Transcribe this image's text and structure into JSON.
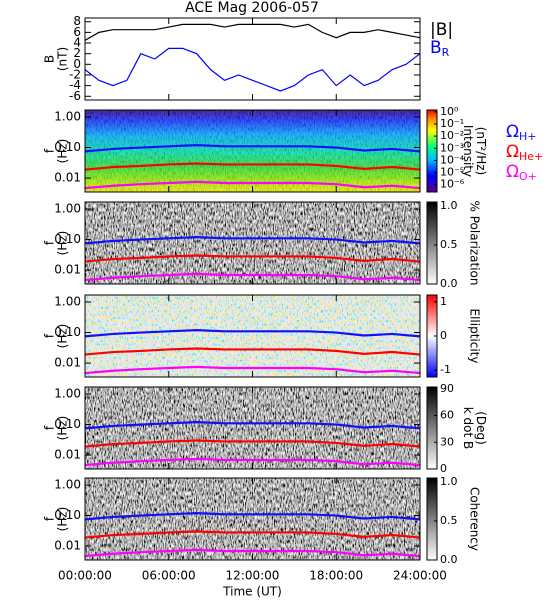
{
  "chart_data": [
    {
      "type": "line",
      "title": "ACE Mag 2006-057",
      "ylabel": [
        "B",
        "(nT)"
      ],
      "x": [
        0,
        1,
        2,
        3,
        4,
        5,
        6,
        7,
        8,
        9,
        10,
        11,
        12,
        13,
        14,
        15,
        16,
        17,
        18,
        19,
        20,
        21,
        22,
        23,
        24
      ],
      "xlim": [
        0,
        24
      ],
      "ylim": [
        -6.7,
        8.7
      ],
      "yticks": [
        -6,
        -4,
        -2,
        0,
        2,
        4,
        6,
        8
      ],
      "series": [
        {
          "name": "|B|",
          "color": "#000000",
          "values": [
            4.5,
            6,
            6.5,
            6.5,
            6.5,
            6.5,
            7,
            7.5,
            7.5,
            7.5,
            7,
            7.5,
            7.5,
            7.5,
            7.5,
            7,
            7.5,
            6,
            5,
            6,
            6,
            6.5,
            6,
            5.5,
            5
          ]
        },
        {
          "name": "B",
          "subscript": "R",
          "color": "#0000ff",
          "values": [
            -1,
            -3,
            -4,
            -3,
            2,
            1,
            3,
            3,
            2,
            -1,
            -3,
            -2,
            -3,
            -4,
            -5,
            -4,
            -2,
            -1,
            -4,
            -2,
            -4,
            -3,
            -1,
            0,
            2
          ]
        }
      ]
    },
    {
      "type": "spectrogram",
      "ylabel": [
        "f",
        "(Hz)"
      ],
      "x": [
        0,
        2,
        4,
        6,
        8,
        10,
        12,
        14,
        16,
        18,
        20,
        22,
        24
      ],
      "xlim": [
        0,
        24
      ],
      "ylog": true,
      "ylim": [
        0.0035,
        1.7
      ],
      "yticks": [
        {
          "value": 1,
          "label": "1.00"
        },
        {
          "value": 0.1,
          "label": "0.10"
        },
        {
          "value": 0.01,
          "label": "0.01"
        }
      ],
      "colormap": "rainbow",
      "colorbar": {
        "label": [
          "Intensity",
          "(nT²/Hz)"
        ],
        "zlim": [
          -6.6,
          0.15
        ],
        "ticks": [
          {
            "value": 0,
            "label": "10⁰"
          },
          {
            "value": -1,
            "label": "10⁻¹"
          },
          {
            "value": -2,
            "label": "10⁻²"
          },
          {
            "value": -3,
            "label": "10⁻³"
          },
          {
            "value": -4,
            "label": "10⁻⁴"
          },
          {
            "value": -5,
            "label": "10⁻⁵"
          },
          {
            "value": -6,
            "label": "10⁻⁶"
          }
        ]
      },
      "series": [
        {
          "name": "Ω",
          "subscript": "H+",
          "color": "#1010ff",
          "values": [
            0.075,
            0.09,
            0.1,
            0.11,
            0.12,
            0.11,
            0.11,
            0.11,
            0.11,
            0.1,
            0.08,
            0.09,
            0.075
          ]
        },
        {
          "name": "Ω",
          "subscript": "He+",
          "color": "#ff0000",
          "values": [
            0.019,
            0.023,
            0.025,
            0.028,
            0.03,
            0.028,
            0.028,
            0.028,
            0.028,
            0.025,
            0.02,
            0.023,
            0.019
          ]
        },
        {
          "name": "Ω",
          "subscript": "O+",
          "color": "#ff00ff",
          "values": [
            0.0047,
            0.0056,
            0.0063,
            0.0069,
            0.0075,
            0.0069,
            0.0069,
            0.0069,
            0.0069,
            0.0063,
            0.005,
            0.0056,
            0.0047
          ]
        }
      ]
    },
    {
      "type": "spectrogram",
      "ylabel": [
        "f",
        "(Hz)"
      ],
      "x": [
        0,
        2,
        4,
        6,
        8,
        10,
        12,
        14,
        16,
        18,
        20,
        22,
        24
      ],
      "xlim": [
        0,
        24
      ],
      "ylog": true,
      "ylim": [
        0.0035,
        1.7
      ],
      "yticks": [
        {
          "value": 1,
          "label": "1.00"
        },
        {
          "value": 0.1,
          "label": "0.10"
        },
        {
          "value": 0.01,
          "label": "0.01"
        }
      ],
      "colormap": "gray",
      "colorbar": {
        "label": [
          "% Polarization"
        ],
        "zlim": [
          0,
          1.05
        ],
        "ticks": [
          {
            "value": 0,
            "label": "0.0"
          },
          {
            "value": 0.5,
            "label": "0.5"
          },
          {
            "value": 1,
            "label": "1.0"
          }
        ]
      },
      "series": [
        {
          "color": "#1010ff",
          "values": [
            0.075,
            0.09,
            0.1,
            0.11,
            0.12,
            0.11,
            0.11,
            0.11,
            0.11,
            0.1,
            0.08,
            0.09,
            0.075
          ]
        },
        {
          "color": "#ff0000",
          "values": [
            0.019,
            0.023,
            0.025,
            0.028,
            0.03,
            0.028,
            0.028,
            0.028,
            0.028,
            0.025,
            0.02,
            0.023,
            0.019
          ]
        },
        {
          "color": "#ff00ff",
          "values": [
            0.0047,
            0.0056,
            0.0063,
            0.0069,
            0.0075,
            0.0069,
            0.0069,
            0.0069,
            0.0069,
            0.0063,
            0.005,
            0.0056,
            0.0047
          ]
        }
      ]
    },
    {
      "type": "spectrogram",
      "ylabel": [
        "f",
        "(Hz)"
      ],
      "x": [
        0,
        2,
        4,
        6,
        8,
        10,
        12,
        14,
        16,
        18,
        20,
        22,
        24
      ],
      "xlim": [
        0,
        24
      ],
      "ylog": true,
      "ylim": [
        0.0035,
        1.7
      ],
      "yticks": [
        {
          "value": 1,
          "label": "1.00"
        },
        {
          "value": 0.1,
          "label": "0.10"
        },
        {
          "value": 0.01,
          "label": "0.01"
        }
      ],
      "colormap": "bwr",
      "colorbar": {
        "label": [
          "Ellipticity"
        ],
        "zlim": [
          -1.2,
          1.2
        ],
        "ticks": [
          -1,
          0,
          1
        ]
      },
      "series": [
        {
          "color": "#1010ff",
          "values": [
            0.075,
            0.09,
            0.1,
            0.11,
            0.12,
            0.11,
            0.11,
            0.11,
            0.11,
            0.1,
            0.08,
            0.09,
            0.075
          ]
        },
        {
          "color": "#ff0000",
          "values": [
            0.019,
            0.023,
            0.025,
            0.028,
            0.03,
            0.028,
            0.028,
            0.028,
            0.028,
            0.025,
            0.02,
            0.023,
            0.019
          ]
        },
        {
          "color": "#ff00ff",
          "values": [
            0.0047,
            0.0056,
            0.0063,
            0.0069,
            0.0075,
            0.0069,
            0.0069,
            0.0069,
            0.0069,
            0.0063,
            0.005,
            0.0056,
            0.0047
          ]
        }
      ]
    },
    {
      "type": "spectrogram",
      "ylabel": [
        "f",
        "(Hz)"
      ],
      "x": [
        0,
        2,
        4,
        6,
        8,
        10,
        12,
        14,
        16,
        18,
        20,
        22,
        24
      ],
      "xlim": [
        0,
        24
      ],
      "ylog": true,
      "ylim": [
        0.0035,
        1.7
      ],
      "yticks": [
        {
          "value": 1,
          "label": "1.00"
        },
        {
          "value": 0.1,
          "label": "0.10"
        },
        {
          "value": 0.01,
          "label": "0.01"
        }
      ],
      "colormap": "gray",
      "colorbar": {
        "label": [
          "k dot B",
          "(Deg)"
        ],
        "zlim": [
          0,
          92
        ],
        "ticks": [
          0,
          30,
          60,
          90
        ]
      },
      "series": [
        {
          "color": "#1010ff",
          "values": [
            0.075,
            0.09,
            0.1,
            0.11,
            0.12,
            0.11,
            0.11,
            0.11,
            0.11,
            0.1,
            0.08,
            0.09,
            0.075
          ]
        },
        {
          "color": "#ff0000",
          "values": [
            0.019,
            0.023,
            0.025,
            0.028,
            0.03,
            0.028,
            0.028,
            0.028,
            0.028,
            0.025,
            0.02,
            0.023,
            0.019
          ]
        },
        {
          "color": "#ff00ff",
          "values": [
            0.0047,
            0.0056,
            0.0063,
            0.0069,
            0.0075,
            0.0069,
            0.0069,
            0.0069,
            0.0069,
            0.0063,
            0.005,
            0.0056,
            0.0047
          ]
        }
      ]
    },
    {
      "type": "spectrogram",
      "ylabel": [
        "f",
        "(Hz)"
      ],
      "x": [
        0,
        2,
        4,
        6,
        8,
        10,
        12,
        14,
        16,
        18,
        20,
        22,
        24
      ],
      "xlim": [
        0,
        24
      ],
      "ylog": true,
      "ylim": [
        0.0035,
        1.7
      ],
      "yticks": [
        {
          "value": 1,
          "label": "1.00"
        },
        {
          "value": 0.1,
          "label": "0.10"
        },
        {
          "value": 0.01,
          "label": "0.01"
        }
      ],
      "colormap": "gray",
      "colorbar": {
        "label": [
          "Coherency"
        ],
        "zlim": [
          0,
          1.05
        ],
        "ticks": [
          {
            "value": 0,
            "label": "0.0"
          },
          {
            "value": 0.5,
            "label": "0.5"
          },
          {
            "value": 1,
            "label": "1.0"
          }
        ]
      },
      "xlabel": "Time (UT)",
      "xticks": [
        {
          "value": 0,
          "label": "00:00:00"
        },
        {
          "value": 6,
          "label": "06:00:00"
        },
        {
          "value": 12,
          "label": "12:00:00"
        },
        {
          "value": 18,
          "label": "18:00:00"
        },
        {
          "value": 24,
          "label": "24:00:00"
        }
      ],
      "series": [
        {
          "color": "#1010ff",
          "values": [
            0.075,
            0.09,
            0.1,
            0.11,
            0.12,
            0.11,
            0.11,
            0.11,
            0.11,
            0.1,
            0.08,
            0.09,
            0.075
          ]
        },
        {
          "color": "#ff0000",
          "values": [
            0.019,
            0.023,
            0.025,
            0.028,
            0.03,
            0.028,
            0.028,
            0.028,
            0.028,
            0.025,
            0.02,
            0.023,
            0.019
          ]
        },
        {
          "color": "#ff00ff",
          "values": [
            0.0047,
            0.0056,
            0.0063,
            0.0069,
            0.0075,
            0.0069,
            0.0069,
            0.0069,
            0.0069,
            0.0063,
            0.005,
            0.0056,
            0.0047
          ]
        }
      ]
    }
  ]
}
